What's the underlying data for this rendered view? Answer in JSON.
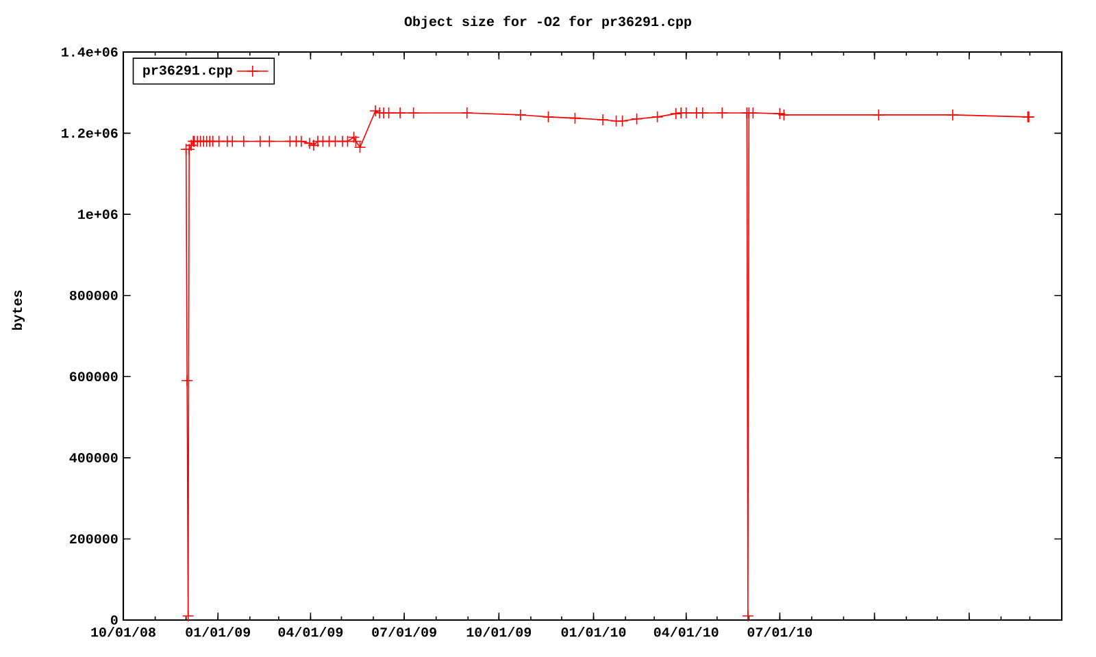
{
  "chart_data": {
    "type": "line",
    "title": "Object size for -O2 for pr36291.cpp",
    "ylabel": "bytes",
    "xlim": [
      "2008-10-01",
      "2011-04-01"
    ],
    "xticks": [
      {
        "value": "2008-10-01",
        "label": "10/01/08"
      },
      {
        "value": "2009-01-01",
        "label": "01/01/09"
      },
      {
        "value": "2009-04-01",
        "label": "04/01/09"
      },
      {
        "value": "2009-07-01",
        "label": "07/01/09"
      },
      {
        "value": "2009-10-01",
        "label": "10/01/09"
      },
      {
        "value": "2010-01-01",
        "label": "01/01/10"
      },
      {
        "value": "2010-04-01",
        "label": "04/01/10"
      },
      {
        "value": "2010-07-01",
        "label": "07/01/10"
      },
      {
        "value": "2010-10-01",
        "label": null
      },
      {
        "value": "2011-01-01",
        "label": null
      }
    ],
    "ylim": [
      0,
      1400000
    ],
    "yticks": [
      0,
      200000,
      400000,
      600000,
      800000,
      {
        "value": 1000000,
        "label": "1e+06"
      },
      {
        "value": 1200000,
        "label": "1.2e+06"
      },
      {
        "value": 1400000,
        "label": "1.4e+06"
      }
    ],
    "legend": "top left",
    "marker": "cross",
    "line_style": "solid",
    "grid": false,
    "series": [
      {
        "name": "pr36291.cpp",
        "color": "#ff0000",
        "x": [
          "2008-12-01",
          "2008-12-02",
          "2008-12-03",
          "2008-12-04",
          "2008-12-06",
          "2008-12-08",
          "2008-12-09",
          "2008-12-12",
          "2008-12-15",
          "2008-12-18",
          "2008-12-21",
          "2008-12-24",
          "2008-12-27",
          "2009-01-02",
          "2009-01-10",
          "2009-01-15",
          "2009-01-26",
          "2009-02-11",
          "2009-02-20",
          "2009-03-12",
          "2009-03-18",
          "2009-03-23",
          "2009-03-31",
          "2009-04-04",
          "2009-04-08",
          "2009-04-13",
          "2009-04-19",
          "2009-04-25",
          "2009-05-02",
          "2009-05-07",
          "2009-05-13",
          "2009-05-15",
          "2009-05-19",
          "2009-06-03",
          "2009-06-07",
          "2009-06-11",
          "2009-06-16",
          "2009-06-27",
          "2009-07-10",
          "2009-08-31",
          "2009-10-22",
          "2009-11-18",
          "2009-12-14",
          "2010-01-10",
          "2010-01-23",
          "2010-01-29",
          "2010-02-12",
          "2010-03-04",
          "2010-03-22",
          "2010-03-27",
          "2010-04-01",
          "2010-04-11",
          "2010-04-17",
          "2010-05-06",
          "2010-05-30",
          "2010-05-31",
          "2010-06-01",
          "2010-06-05",
          "2010-07-01",
          "2010-07-05",
          "2010-10-05",
          "2010-12-16",
          "2011-02-27",
          "2011-02-28"
        ],
        "values": [
          1160000,
          590000,
          10000,
          1160000,
          1170000,
          1180000,
          1180000,
          1180000,
          1180000,
          1180000,
          1180000,
          1180000,
          1180000,
          1180000,
          1180000,
          1180000,
          1180000,
          1180000,
          1180000,
          1180000,
          1180000,
          1180000,
          1175000,
          1170000,
          1180000,
          1180000,
          1180000,
          1180000,
          1180000,
          1180000,
          1190000,
          1180000,
          1165000,
          1255000,
          1250000,
          1250000,
          1250000,
          1250000,
          1250000,
          1250000,
          1245000,
          1240000,
          1237000,
          1233000,
          1230000,
          1230000,
          1235000,
          1240000,
          1248000,
          1250000,
          1250000,
          1250000,
          1250000,
          1250000,
          1250000,
          10000,
          1250000,
          1250000,
          1248000,
          1245000,
          1245000,
          1245000,
          1240000,
          1240000
        ]
      }
    ]
  }
}
